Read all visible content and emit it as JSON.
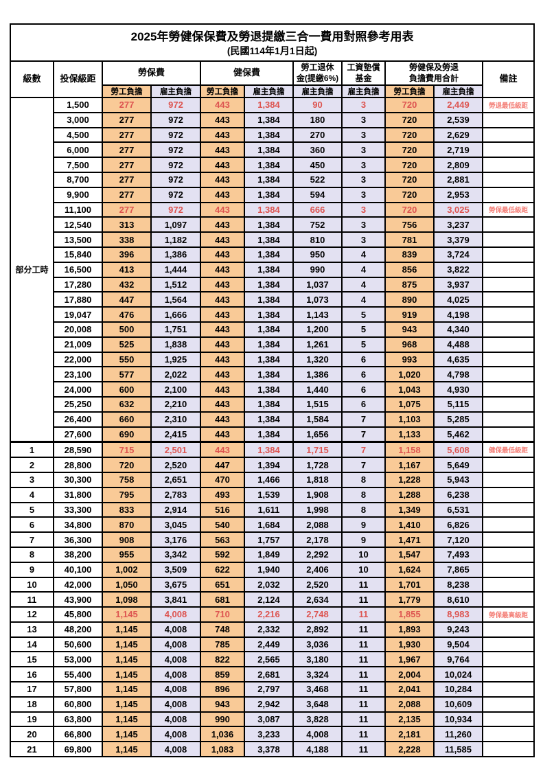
{
  "page": {
    "title": "2025年勞健保保費及勞退提繳三合一費用對照參考用表",
    "subtitle": "(民國114年1月1日起)"
  },
  "colors": {
    "employee_column_bg": "#f9ca97",
    "employer_column_bg": "#e3e1f2",
    "highlight_value_red": "#dd5450",
    "remark_red": "#f4827a",
    "border": "#000000"
  },
  "header": {
    "level": "級數",
    "salary_bracket": "投保級距",
    "labor_insurance": "勞保費",
    "health_insurance": "健保費",
    "pension_line1": "勞工退休",
    "pension_line2": "金(提繳6%)",
    "wage_fund_line1": "工資墊償",
    "wage_fund_line2": "基金",
    "total_line1": "勞健保及勞退",
    "total_line2": "負擔費用合計",
    "remark": "備註",
    "employee_share": "勞工負擔",
    "employer_share": "雇主負擔"
  },
  "part_time_label": "部分工時",
  "rows": [
    {
      "level": "部分工時",
      "level_rowspan": 23,
      "bracket": "1,500",
      "values": [
        "277",
        "972",
        "443",
        "1,384",
        "90",
        "3",
        "720",
        "2,449"
      ],
      "remark": "勞退最低級距",
      "red": true
    },
    {
      "level": null,
      "bracket": "3,000",
      "values": [
        "277",
        "972",
        "443",
        "1,384",
        "180",
        "3",
        "720",
        "2,539"
      ],
      "remark": ""
    },
    {
      "level": null,
      "bracket": "4,500",
      "values": [
        "277",
        "972",
        "443",
        "1,384",
        "270",
        "3",
        "720",
        "2,629"
      ],
      "remark": ""
    },
    {
      "level": null,
      "bracket": "6,000",
      "values": [
        "277",
        "972",
        "443",
        "1,384",
        "360",
        "3",
        "720",
        "2,719"
      ],
      "remark": ""
    },
    {
      "level": null,
      "bracket": "7,500",
      "values": [
        "277",
        "972",
        "443",
        "1,384",
        "450",
        "3",
        "720",
        "2,809"
      ],
      "remark": ""
    },
    {
      "level": null,
      "bracket": "8,700",
      "values": [
        "277",
        "972",
        "443",
        "1,384",
        "522",
        "3",
        "720",
        "2,881"
      ],
      "remark": ""
    },
    {
      "level": null,
      "bracket": "9,900",
      "values": [
        "277",
        "972",
        "443",
        "1,384",
        "594",
        "3",
        "720",
        "2,953"
      ],
      "remark": ""
    },
    {
      "level": null,
      "bracket": "11,100",
      "values": [
        "277",
        "972",
        "443",
        "1,384",
        "666",
        "3",
        "720",
        "3,025"
      ],
      "remark": "勞保最低級距",
      "red": true
    },
    {
      "level": null,
      "bracket": "12,540",
      "values": [
        "313",
        "1,097",
        "443",
        "1,384",
        "752",
        "3",
        "756",
        "3,237"
      ],
      "remark": ""
    },
    {
      "level": null,
      "bracket": "13,500",
      "values": [
        "338",
        "1,182",
        "443",
        "1,384",
        "810",
        "3",
        "781",
        "3,379"
      ],
      "remark": ""
    },
    {
      "level": null,
      "bracket": "15,840",
      "values": [
        "396",
        "1,386",
        "443",
        "1,384",
        "950",
        "4",
        "839",
        "3,724"
      ],
      "remark": ""
    },
    {
      "level": null,
      "bracket": "16,500",
      "values": [
        "413",
        "1,444",
        "443",
        "1,384",
        "990",
        "4",
        "856",
        "3,822"
      ],
      "remark": ""
    },
    {
      "level": null,
      "bracket": "17,280",
      "values": [
        "432",
        "1,512",
        "443",
        "1,384",
        "1,037",
        "4",
        "875",
        "3,937"
      ],
      "remark": ""
    },
    {
      "level": null,
      "bracket": "17,880",
      "values": [
        "447",
        "1,564",
        "443",
        "1,384",
        "1,073",
        "4",
        "890",
        "4,025"
      ],
      "remark": ""
    },
    {
      "level": null,
      "bracket": "19,047",
      "values": [
        "476",
        "1,666",
        "443",
        "1,384",
        "1,143",
        "5",
        "919",
        "4,198"
      ],
      "remark": ""
    },
    {
      "level": null,
      "bracket": "20,008",
      "values": [
        "500",
        "1,751",
        "443",
        "1,384",
        "1,200",
        "5",
        "943",
        "4,340"
      ],
      "remark": ""
    },
    {
      "level": null,
      "bracket": "21,009",
      "values": [
        "525",
        "1,838",
        "443",
        "1,384",
        "1,261",
        "5",
        "968",
        "4,488"
      ],
      "remark": ""
    },
    {
      "level": null,
      "bracket": "22,000",
      "values": [
        "550",
        "1,925",
        "443",
        "1,384",
        "1,320",
        "6",
        "993",
        "4,635"
      ],
      "remark": ""
    },
    {
      "level": null,
      "bracket": "23,100",
      "values": [
        "577",
        "2,022",
        "443",
        "1,384",
        "1,386",
        "6",
        "1,020",
        "4,798"
      ],
      "remark": ""
    },
    {
      "level": null,
      "bracket": "24,000",
      "values": [
        "600",
        "2,100",
        "443",
        "1,384",
        "1,440",
        "6",
        "1,043",
        "4,930"
      ],
      "remark": ""
    },
    {
      "level": null,
      "bracket": "25,250",
      "values": [
        "632",
        "2,210",
        "443",
        "1,384",
        "1,515",
        "6",
        "1,075",
        "5,115"
      ],
      "remark": ""
    },
    {
      "level": null,
      "bracket": "26,400",
      "values": [
        "660",
        "2,310",
        "443",
        "1,384",
        "1,584",
        "7",
        "1,103",
        "5,285"
      ],
      "remark": ""
    },
    {
      "level": null,
      "bracket": "27,600",
      "values": [
        "690",
        "2,415",
        "443",
        "1,384",
        "1,656",
        "7",
        "1,133",
        "5,462"
      ],
      "remark": ""
    },
    {
      "level": "1",
      "bracket": "28,590",
      "values": [
        "715",
        "2,501",
        "443",
        "1,384",
        "1,715",
        "7",
        "1,158",
        "5,608"
      ],
      "remark": "健保最低級距",
      "red": true,
      "thick_top": true
    },
    {
      "level": "2",
      "bracket": "28,800",
      "values": [
        "720",
        "2,520",
        "447",
        "1,394",
        "1,728",
        "7",
        "1,167",
        "5,649"
      ],
      "remark": ""
    },
    {
      "level": "3",
      "bracket": "30,300",
      "values": [
        "758",
        "2,651",
        "470",
        "1,466",
        "1,818",
        "8",
        "1,228",
        "5,943"
      ],
      "remark": ""
    },
    {
      "level": "4",
      "bracket": "31,800",
      "values": [
        "795",
        "2,783",
        "493",
        "1,539",
        "1,908",
        "8",
        "1,288",
        "6,238"
      ],
      "remark": ""
    },
    {
      "level": "5",
      "bracket": "33,300",
      "values": [
        "833",
        "2,914",
        "516",
        "1,611",
        "1,998",
        "8",
        "1,349",
        "6,531"
      ],
      "remark": ""
    },
    {
      "level": "6",
      "bracket": "34,800",
      "values": [
        "870",
        "3,045",
        "540",
        "1,684",
        "2,088",
        "9",
        "1,410",
        "6,826"
      ],
      "remark": ""
    },
    {
      "level": "7",
      "bracket": "36,300",
      "values": [
        "908",
        "3,176",
        "563",
        "1,757",
        "2,178",
        "9",
        "1,471",
        "7,120"
      ],
      "remark": ""
    },
    {
      "level": "8",
      "bracket": "38,200",
      "values": [
        "955",
        "3,342",
        "592",
        "1,849",
        "2,292",
        "10",
        "1,547",
        "7,493"
      ],
      "remark": ""
    },
    {
      "level": "9",
      "bracket": "40,100",
      "values": [
        "1,002",
        "3,509",
        "622",
        "1,940",
        "2,406",
        "10",
        "1,624",
        "7,865"
      ],
      "remark": ""
    },
    {
      "level": "10",
      "bracket": "42,000",
      "values": [
        "1,050",
        "3,675",
        "651",
        "2,032",
        "2,520",
        "11",
        "1,701",
        "8,238"
      ],
      "remark": ""
    },
    {
      "level": "11",
      "bracket": "43,900",
      "values": [
        "1,098",
        "3,841",
        "681",
        "2,124",
        "2,634",
        "11",
        "1,779",
        "8,610"
      ],
      "remark": ""
    },
    {
      "level": "12",
      "bracket": "45,800",
      "values": [
        "1,145",
        "4,008",
        "710",
        "2,216",
        "2,748",
        "11",
        "1,855",
        "8,983"
      ],
      "remark": "勞保最高級距",
      "red": true
    },
    {
      "level": "13",
      "bracket": "48,200",
      "values": [
        "1,145",
        "4,008",
        "748",
        "2,332",
        "2,892",
        "11",
        "1,893",
        "9,243"
      ],
      "remark": ""
    },
    {
      "level": "14",
      "bracket": "50,600",
      "values": [
        "1,145",
        "4,008",
        "785",
        "2,449",
        "3,036",
        "11",
        "1,930",
        "9,504"
      ],
      "remark": ""
    },
    {
      "level": "15",
      "bracket": "53,000",
      "values": [
        "1,145",
        "4,008",
        "822",
        "2,565",
        "3,180",
        "11",
        "1,967",
        "9,764"
      ],
      "remark": ""
    },
    {
      "level": "16",
      "bracket": "55,400",
      "values": [
        "1,145",
        "4,008",
        "859",
        "2,681",
        "3,324",
        "11",
        "2,004",
        "10,024"
      ],
      "remark": ""
    },
    {
      "level": "17",
      "bracket": "57,800",
      "values": [
        "1,145",
        "4,008",
        "896",
        "2,797",
        "3,468",
        "11",
        "2,041",
        "10,284"
      ],
      "remark": ""
    },
    {
      "level": "18",
      "bracket": "60,800",
      "values": [
        "1,145",
        "4,008",
        "943",
        "2,942",
        "3,648",
        "11",
        "2,088",
        "10,609"
      ],
      "remark": ""
    },
    {
      "level": "19",
      "bracket": "63,800",
      "values": [
        "1,145",
        "4,008",
        "990",
        "3,087",
        "3,828",
        "11",
        "2,135",
        "10,934"
      ],
      "remark": ""
    },
    {
      "level": "20",
      "bracket": "66,800",
      "values": [
        "1,145",
        "4,008",
        "1,036",
        "3,233",
        "4,008",
        "11",
        "2,181",
        "11,260"
      ],
      "remark": ""
    },
    {
      "level": "21",
      "bracket": "69,800",
      "values": [
        "1,145",
        "4,008",
        "1,083",
        "3,378",
        "4,188",
        "11",
        "2,228",
        "11,585"
      ],
      "remark": ""
    }
  ]
}
